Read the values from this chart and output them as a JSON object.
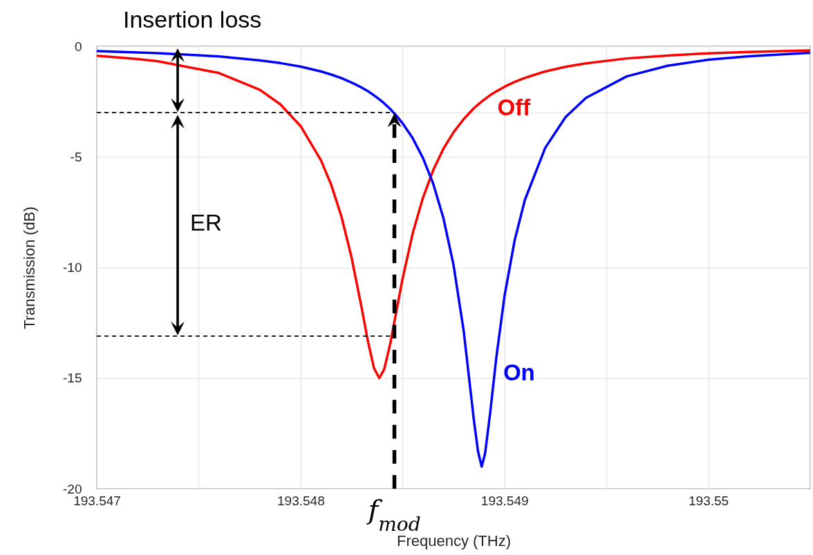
{
  "chart_data": {
    "type": "line",
    "xlabel": "Frequency (THz)",
    "ylabel": "Transmission (dB)",
    "x": [
      193.547,
      193.5472,
      193.5473,
      193.5476,
      193.5478,
      193.5479,
      193.548,
      193.5481,
      193.54815,
      193.5482,
      193.54825,
      193.5483,
      193.54833,
      193.54836,
      193.548386,
      193.54841,
      193.54844,
      193.54847,
      193.5485,
      193.54855,
      193.5486,
      193.54865,
      193.5487,
      193.54875,
      193.5488,
      193.54885,
      193.54887,
      193.548888,
      193.548905,
      193.54893,
      193.54896,
      193.549,
      193.54905,
      193.5491,
      193.5492,
      193.5493,
      193.5494,
      193.5496,
      193.5498,
      193.55,
      193.5502,
      193.5505
    ],
    "series": [
      {
        "name": "Off",
        "color": "#ff0000",
        "values": [
          -0.43,
          -0.58,
          -0.68,
          -1.21,
          -1.97,
          -2.62,
          -3.61,
          -5.16,
          -6.26,
          -7.69,
          -9.55,
          -11.85,
          -13.33,
          -14.55,
          -15.0,
          -14.6,
          -13.43,
          -11.96,
          -10.51,
          -8.45,
          -6.85,
          -5.61,
          -4.64,
          -3.89,
          -3.29,
          -2.8,
          -2.64,
          -2.5,
          -2.38,
          -2.21,
          -2.04,
          -1.83,
          -1.61,
          -1.43,
          -1.14,
          -0.93,
          -0.77,
          -0.55,
          -0.42,
          -0.32,
          -0.26,
          -0.19
        ]
      },
      {
        "name": "On",
        "color": "#0000ff",
        "values": [
          -0.22,
          -0.28,
          -0.31,
          -0.46,
          -0.64,
          -0.76,
          -0.92,
          -1.14,
          -1.28,
          -1.44,
          -1.64,
          -1.87,
          -2.03,
          -2.22,
          -2.4,
          -2.58,
          -2.84,
          -3.14,
          -3.48,
          -4.16,
          -5.05,
          -6.2,
          -7.75,
          -9.88,
          -12.87,
          -16.9,
          -18.3,
          -19.0,
          -18.4,
          -16.56,
          -14.07,
          -11.3,
          -8.77,
          -6.95,
          -4.59,
          -3.2,
          -2.33,
          -1.36,
          -0.88,
          -0.61,
          -0.45,
          -0.3
        ]
      }
    ],
    "ref_lines": [
      {
        "axis": "y",
        "value": -3.0,
        "color": "#000000",
        "line_style": "dashed"
      },
      {
        "axis": "y",
        "value": -13.1,
        "color": "#000000",
        "line_style": "dashed"
      },
      {
        "axis": "x",
        "value": 193.54846,
        "label": "f$_{mod}$",
        "color": "#000000",
        "line_style": "dashed"
      }
    ],
    "xlim": [
      193.547,
      193.5505
    ],
    "xticks": [
      193.547,
      {
        "value": 193.5475,
        "label": null
      },
      193.548,
      {
        "value": 193.5485,
        "label": null
      },
      193.549,
      {
        "value": 193.5495,
        "label": null
      },
      193.55,
      {
        "value": 193.5505,
        "label": null
      }
    ],
    "ylim": [
      -20,
      0
    ],
    "yticks": [
      -20,
      -15,
      -10,
      -5,
      {
        "value": -3,
        "label": null
      },
      0
    ],
    "grid": true,
    "annotations": [
      "Insertion loss",
      "ER"
    ]
  }
}
